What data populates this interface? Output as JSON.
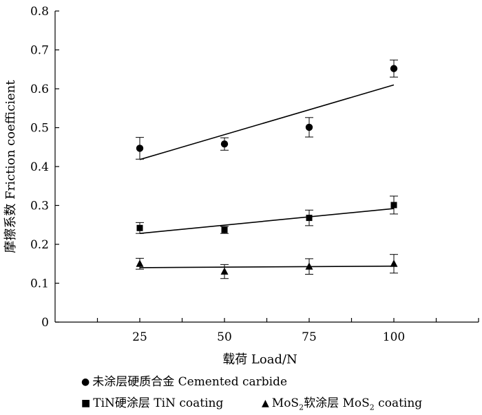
{
  "chart_data": {
    "type": "scatter",
    "title": "",
    "xlabel": "载荷 Load/N",
    "ylabel": "摩擦系数 Friction coefficient",
    "xlim": [
      0,
      125
    ],
    "ylim": [
      0,
      0.8
    ],
    "x_ticks": [
      25,
      50,
      75,
      100
    ],
    "x_tick_labels": [
      "25",
      "50",
      "75",
      "100"
    ],
    "y_ticks": [
      0,
      0.1,
      0.2,
      0.3,
      0.4,
      0.5,
      0.6,
      0.7,
      0.8
    ],
    "y_tick_labels": [
      "0",
      "0.1",
      "0.2",
      "0.3",
      "0.4",
      "0.5",
      "0.6",
      "0.7",
      "0.8"
    ],
    "grid": false,
    "legend_position": "bottom",
    "series": [
      {
        "name": "未涂层硬质合金 Cemented carbide",
        "marker": "circle",
        "x": [
          25,
          50,
          75,
          100
        ],
        "values": [
          0.447,
          0.458,
          0.501,
          0.652
        ],
        "errors": [
          0.028,
          0.016,
          0.025,
          0.022
        ],
        "fit": [
          0.418,
          0.61
        ]
      },
      {
        "name": "TiN硬涂层 TiN coating",
        "marker": "square",
        "x": [
          25,
          50,
          75,
          100
        ],
        "values": [
          0.242,
          0.237,
          0.268,
          0.301
        ],
        "errors": [
          0.014,
          0.009,
          0.02,
          0.023
        ],
        "fit": [
          0.228,
          0.292
        ]
      },
      {
        "name": "MoS2软涂层 MoS2 coating",
        "marker": "triangle",
        "x": [
          25,
          50,
          75,
          100
        ],
        "values": [
          0.15,
          0.13,
          0.143,
          0.15
        ],
        "errors": [
          0.014,
          0.018,
          0.02,
          0.024
        ],
        "fit": [
          0.14,
          0.144
        ]
      }
    ]
  },
  "legend": {
    "carbide_marker": "●",
    "carbide_label": "未涂层硬质合金 Cemented carbide",
    "tin_marker": "■",
    "tin_label": "TiN硬涂层 TiN coating",
    "mos2_marker": "▲",
    "mos2_label_a": "MoS",
    "mos2_sub_a": "2",
    "mos2_label_b": "软涂层 MoS",
    "mos2_sub_b": "2",
    "mos2_label_c": " coating"
  }
}
